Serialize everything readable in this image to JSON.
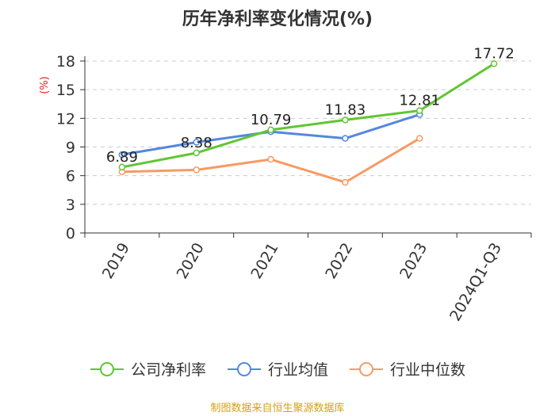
{
  "chart_data": {
    "type": "line",
    "title": "历年净利率变化情况(%)",
    "ylabel": "(%)",
    "xlabel": "",
    "categories": [
      "2019",
      "2020",
      "2021",
      "2022",
      "2023",
      "2024Q1-Q3"
    ],
    "ylim": [
      0,
      18
    ],
    "yticks": [
      0,
      3,
      6,
      9,
      12,
      15,
      18
    ],
    "grid": "horizontal dashed",
    "legend_position": "bottom",
    "series": [
      {
        "name": "公司净利率",
        "color": "#5fc632",
        "values": [
          6.89,
          8.38,
          10.79,
          11.83,
          12.81,
          17.72
        ],
        "labels": [
          "6.89",
          "8.38",
          "10.79",
          "11.83",
          "12.81",
          "17.72"
        ]
      },
      {
        "name": "行业均值",
        "color": "#5487e0",
        "values": [
          8.2,
          9.5,
          10.6,
          9.9,
          12.4,
          null
        ]
      },
      {
        "name": "行业中位数",
        "color": "#f89a64",
        "values": [
          6.4,
          6.6,
          7.7,
          5.3,
          9.9,
          null
        ]
      }
    ]
  },
  "source_note": "制图数据来自恒生聚源数据库"
}
